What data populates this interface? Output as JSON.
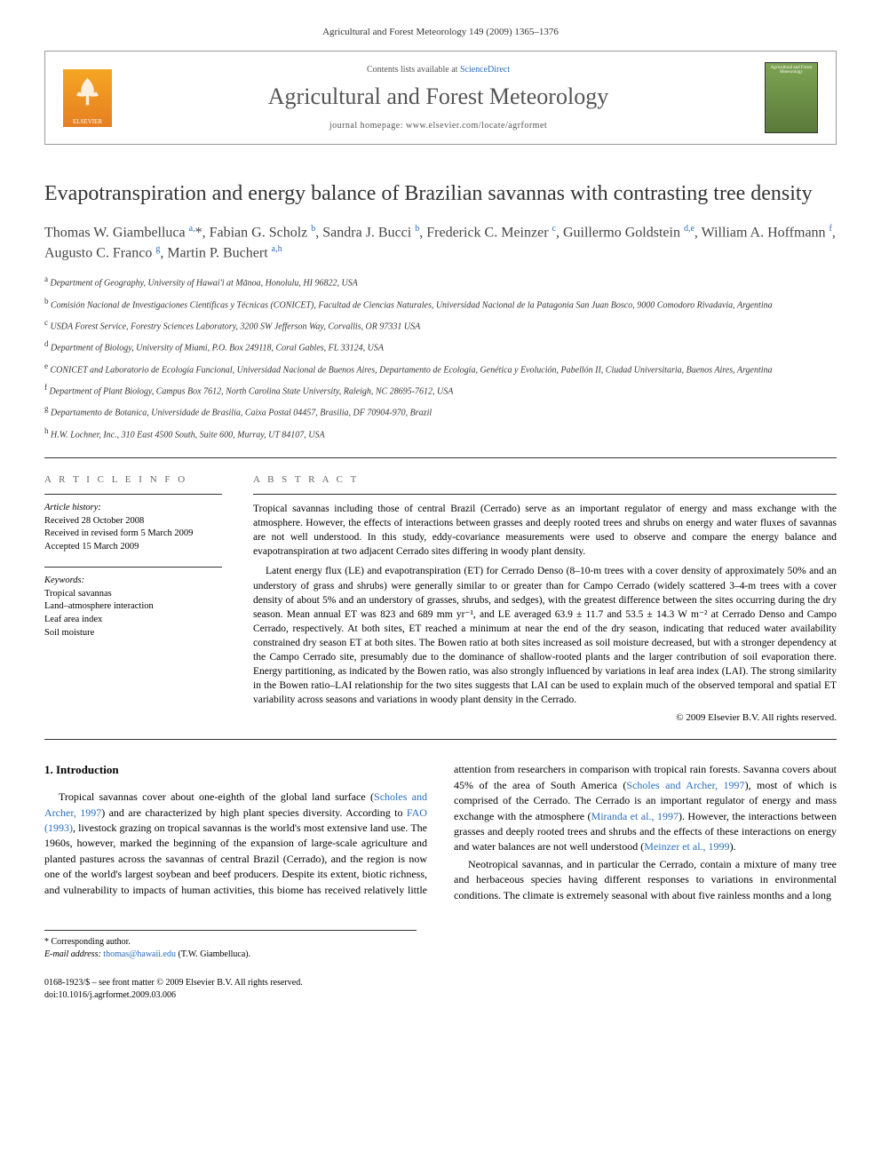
{
  "running_head": "Agricultural and Forest Meteorology 149 (2009) 1365–1376",
  "header": {
    "contents_prefix": "Contents lists available at ",
    "contents_link": "ScienceDirect",
    "journal_title": "Agricultural and Forest Meteorology",
    "homepage_prefix": "journal homepage: ",
    "homepage_url": "www.elsevier.com/locate/agrformet",
    "publisher": "ELSEVIER",
    "cover_label": "Agricultural and Forest Meteorology"
  },
  "title": "Evapotranspiration and energy balance of Brazilian savannas with contrasting tree density",
  "authors_html": "Thomas W. Giambelluca <sup class='sup-link'>a,</sup>*, Fabian G. Scholz <sup class='sup-link'>b</sup>, Sandra J. Bucci <sup class='sup-link'>b</sup>, Frederick C. Meinzer <sup class='sup-link'>c</sup>, Guillermo Goldstein <sup class='sup-link'>d,e</sup>, William A. Hoffmann <sup class='sup-link'>f</sup>, Augusto C. Franco <sup class='sup-link'>g</sup>, Martin P. Buchert <sup class='sup-link'>a,h</sup>",
  "affiliations": [
    "a Department of Geography, University of Hawai'i at Mānoa, Honolulu, HI 96822, USA",
    "b Comisión Nacional de Investigaciones Científicas y Técnicas (CONICET), Facultad de Ciencias Naturales, Universidad Nacional de la Patagonia San Juan Bosco, 9000 Comodoro Rivadavia, Argentina",
    "c USDA Forest Service, Forestry Sciences Laboratory, 3200 SW Jefferson Way, Corvallis, OR 97331 USA",
    "d Department of Biology, University of Miami, P.O. Box 249118, Coral Gables, FL 33124, USA",
    "e CONICET and Laboratorio de Ecología Funcional, Universidad Nacional de Buenos Aires, Departamento de Ecología, Genética y Evolución, Pabellón II, Ciudad Universitaria, Buenos Aires, Argentina",
    "f Department of Plant Biology, Campus Box 7612, North Carolina State University, Raleigh, NC 28695-7612, USA",
    "g Departamento de Botanica, Universidade de Brasilia, Caixa Postal 04457, Brasilia, DF 70904-970, Brazil",
    "h H.W. Lochner, Inc., 310 East 4500 South, Suite 600, Murray, UT 84107, USA"
  ],
  "article_info": {
    "head": "A R T I C L E   I N F O",
    "history_label": "Article history:",
    "history": [
      "Received 28 October 2008",
      "Received in revised form 5 March 2009",
      "Accepted 15 March 2009"
    ],
    "keywords_label": "Keywords:",
    "keywords": [
      "Tropical savannas",
      "Land–atmosphere interaction",
      "Leaf area index",
      "Soil moisture"
    ]
  },
  "abstract": {
    "head": "A B S T R A C T",
    "p1": "Tropical savannas including those of central Brazil (Cerrado) serve as an important regulator of energy and mass exchange with the atmosphere. However, the effects of interactions between grasses and deeply rooted trees and shrubs on energy and water fluxes of savannas are not well understood. In this study, eddy-covariance measurements were used to observe and compare the energy balance and evapotranspiration at two adjacent Cerrado sites differing in woody plant density.",
    "p2": "Latent energy flux (LE) and evapotranspiration (ET) for Cerrado Denso (8–10-m trees with a cover density of approximately 50% and an understory of grass and shrubs) were generally similar to or greater than for Campo Cerrado (widely scattered 3–4-m trees with a cover density of about 5% and an understory of grasses, shrubs, and sedges), with the greatest difference between the sites occurring during the dry season. Mean annual ET was 823 and 689 mm yr⁻¹, and LE averaged 63.9 ± 11.7 and 53.5 ± 14.3 W m⁻² at Cerrado Denso and Campo Cerrado, respectively. At both sites, ET reached a minimum at near the end of the dry season, indicating that reduced water availability constrained dry season ET at both sites. The Bowen ratio at both sites increased as soil moisture decreased, but with a stronger dependency at the Campo Cerrado site, presumably due to the dominance of shallow-rooted plants and the larger contribution of soil evaporation there. Energy partitioning, as indicated by the Bowen ratio, was also strongly influenced by variations in leaf area index (LAI). The strong similarity in the Bowen ratio–LAI relationship for the two sites suggests that LAI can be used to explain much of the observed temporal and spatial ET variability across seasons and variations in woody plant density in the Cerrado.",
    "copyright": "© 2009 Elsevier B.V. All rights reserved."
  },
  "body": {
    "heading": "1. Introduction",
    "p1_pre": "Tropical savannas cover about one-eighth of the global land surface (",
    "p1_link1": "Scholes and Archer, 1997",
    "p1_mid1": ") and are characterized by high plant species diversity. According to ",
    "p1_link2": "FAO (1993)",
    "p1_post": ", livestock grazing on tropical savannas is the world's most extensive land use. The 1960s, however, marked the beginning of the expansion of large-scale agriculture and planted pastures across the savannas of central Brazil (Cerrado), and the region is now one of the world's largest soybean and beef producers. Despite its extent, biotic richness, and vulnerability to impacts of human activities, this biome has received relatively little attention from researchers in comparison with tropical rain forests. Savanna covers about 45% of the area of South America (",
    "p1_link3": "Scholes and Archer, 1997",
    "p1_mid2": "), most of which is comprised of the Cerrado. The Cerrado is an important regulator of energy and mass exchange with the atmosphere (",
    "p1_link4": "Miranda et al., 1997",
    "p1_mid3": "). However, the interactions between grasses and deeply rooted trees and shrubs and the effects of these interactions on energy and water balances are not well understood (",
    "p1_link5": "Meinzer et al., 1999",
    "p1_end": ").",
    "p2": "Neotropical savannas, and in particular the Cerrado, contain a mixture of many tree and herbaceous species having different responses to variations in environmental conditions. The climate is extremely seasonal with about five rainless months and a long"
  },
  "footnote": {
    "corr_label": "* Corresponding author.",
    "email_label": "E-mail address:",
    "email": "thomas@hawaii.edu",
    "email_who": " (T.W. Giambelluca)."
  },
  "footer": {
    "line1": "0168-1923/$ – see front matter © 2009 Elsevier B.V. All rights reserved.",
    "line2": "doi:10.1016/j.agrformet.2009.03.006"
  }
}
